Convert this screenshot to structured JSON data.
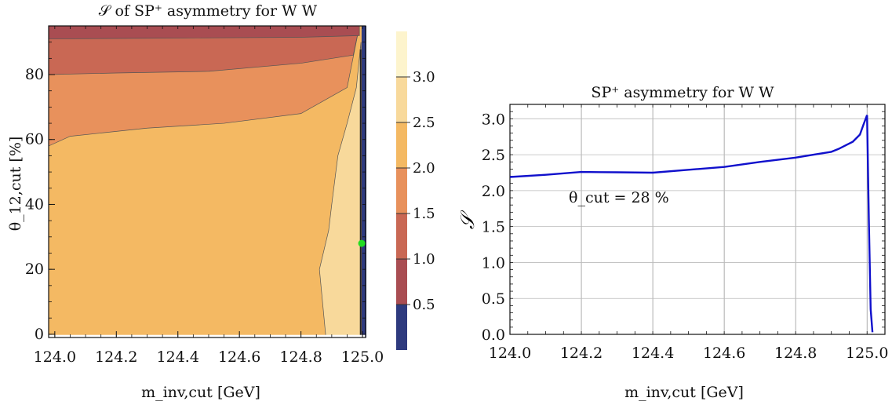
{
  "chart_data": [
    {
      "type": "heatmap",
      "title": "𝒮 of SP⁺ asymmetry for W W",
      "xlabel": "m_inv,cut [GeV]",
      "ylabel": "θ_12,cut [%]",
      "xlim": [
        123.98,
        125.01
      ],
      "ylim": [
        -1,
        95
      ],
      "xticks": [
        "124.0",
        "124.2",
        "124.4",
        "124.6",
        "124.8",
        "125.0"
      ],
      "yticks": [
        "0",
        "20",
        "40",
        "60",
        "80"
      ],
      "x_tick_values": [
        124.0,
        124.2,
        124.4,
        124.6,
        124.8,
        125.0
      ],
      "y_tick_values": [
        0,
        20,
        40,
        60,
        80
      ],
      "colorbar": {
        "ticks": [
          "0.5",
          "1.0",
          "1.5",
          "2.0",
          "2.5",
          "3.0"
        ],
        "levels": [
          0.5,
          1.0,
          1.5,
          2.0,
          2.5,
          3.0
        ],
        "range": [
          0.0,
          3.5
        ],
        "colors": [
          "#2e3a7e",
          "#a94d52",
          "#c96854",
          "#e8915c",
          "#f4b963",
          "#f8d99b",
          "#fdf4cd"
        ]
      },
      "contour_regions": [
        {
          "level_range": [
            0.5,
            1.0
          ],
          "color": "#a94d52",
          "description_boundary": [
            [
              123.98,
              91.0
            ],
            [
              124.8,
              91.5
            ],
            [
              124.99,
              92.0
            ]
          ]
        },
        {
          "level_range": [
            1.0,
            1.5
          ],
          "color": "#c96854",
          "boundary_lower": [
            [
              123.98,
              80.0
            ],
            [
              124.2,
              80.5
            ],
            [
              124.5,
              81.0
            ],
            [
              124.8,
              83.5
            ],
            [
              124.97,
              86.0
            ]
          ]
        },
        {
          "level_range": [
            1.5,
            2.0
          ],
          "color": "#e8915c",
          "boundary_lower": [
            [
              123.98,
              58.0
            ],
            [
              124.05,
              61.0
            ],
            [
              124.3,
              63.5
            ],
            [
              124.55,
              65.0
            ],
            [
              124.8,
              68.0
            ],
            [
              124.95,
              76.0
            ]
          ]
        },
        {
          "level_range": [
            2.0,
            2.5
          ],
          "color": "#f4b963"
        },
        {
          "level_range": [
            2.5,
            3.0
          ],
          "color": "#f8d99b",
          "boundary_left": [
            [
              124.88,
              0
            ],
            [
              124.86,
              20
            ],
            [
              124.89,
              32
            ],
            [
              124.9,
              40
            ],
            [
              124.92,
              55
            ],
            [
              124.95,
              65
            ],
            [
              124.98,
              76
            ]
          ]
        },
        {
          "level_range": [
            0.0,
            0.5
          ],
          "color": "#2e3a7e",
          "near_x": 125.0
        }
      ],
      "marker": {
        "x": 125.0,
        "y": 28,
        "color": "#22dd22"
      }
    },
    {
      "type": "line",
      "title": "SP⁺ asymmetry for W W",
      "xlabel": "m_inv,cut [GeV]",
      "ylabel": "𝒮",
      "xlim": [
        124.0,
        125.05
      ],
      "ylim": [
        0.0,
        3.2
      ],
      "xticks": [
        "124.0",
        "124.2",
        "124.4",
        "124.6",
        "124.8",
        "125.0"
      ],
      "yticks": [
        "0.0",
        "0.5",
        "1.0",
        "1.5",
        "2.0",
        "2.5",
        "3.0"
      ],
      "x_tick_values": [
        124.0,
        124.2,
        124.4,
        124.6,
        124.8,
        125.0
      ],
      "y_tick_values": [
        0.0,
        0.5,
        1.0,
        1.5,
        2.0,
        2.5,
        3.0
      ],
      "grid": true,
      "annotation": "θ_cut = 28 %",
      "series": [
        {
          "color": "#1010cc",
          "x": [
            124.0,
            124.1,
            124.2,
            124.3,
            124.4,
            124.5,
            124.6,
            124.7,
            124.8,
            124.85,
            124.9,
            124.92,
            124.94,
            124.96,
            124.98,
            124.99,
            125.0,
            125.005,
            125.01,
            125.015
          ],
          "y": [
            2.19,
            2.22,
            2.26,
            2.255,
            2.25,
            2.29,
            2.33,
            2.4,
            2.46,
            2.5,
            2.54,
            2.58,
            2.63,
            2.68,
            2.78,
            2.92,
            3.05,
            1.6,
            0.35,
            0.03
          ]
        }
      ]
    }
  ]
}
